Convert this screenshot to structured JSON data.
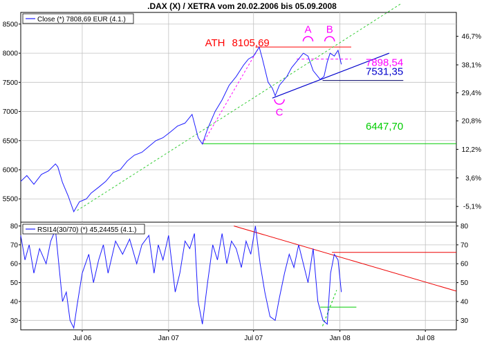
{
  "title": ".DAX (X) / XETRA vom 20.02.2006 bis 05.09.2008",
  "x_tick_labels": [
    {
      "label": "Jul 06",
      "date": "2006-07-01"
    },
    {
      "label": "Jan 07",
      "date": "2007-01-01"
    },
    {
      "label": "Jul 07",
      "date": "2007-07-01"
    },
    {
      "label": "Jan 08",
      "date": "2008-01-01"
    },
    {
      "label": "Jul 08",
      "date": "2008-07-01"
    }
  ],
  "colors": {
    "price": "#1a1aff",
    "rsi": "#1a1aff",
    "trend_blue": "#0000cc",
    "ath_red": "#ff0000",
    "support_green": "#00cc00",
    "magenta": "#ff00ff",
    "green_dashed": "#33cc33",
    "rsi_red": "#ee0000"
  },
  "chart_data": [
    {
      "type": "line",
      "name": "price",
      "legend": "Close (*) 7808,69 EUR (4.1.)",
      "xlim": [
        "2006-02-20",
        "2008-09-05"
      ],
      "ylim": [
        5100,
        8700
      ],
      "y_ticks": [
        5500,
        6000,
        6500,
        7000,
        7500,
        8000,
        8500
      ],
      "y_tick_labels": [
        "5500",
        "6000",
        "6500",
        "7000",
        "7500",
        "8000",
        "8500"
      ],
      "right_ticks": [
        {
          "label": "-5,1%",
          "value": 5370
        },
        {
          "label": "3,6%",
          "value": 5860
        },
        {
          "label": "12,2%",
          "value": 6350
        },
        {
          "label": "20,8%",
          "value": 6840
        },
        {
          "label": "29,4%",
          "value": 7320
        },
        {
          "label": "38,1%",
          "value": 7800
        },
        {
          "label": "46,7%",
          "value": 8290
        }
      ],
      "grid": true,
      "series": [
        {
          "x": [
            "2006-02-20",
            "2006-03-05",
            "2006-03-20",
            "2006-04-05",
            "2006-04-20",
            "2006-05-05",
            "2006-05-10",
            "2006-05-20",
            "2006-06-01",
            "2006-06-13",
            "2006-06-25",
            "2006-07-10",
            "2006-07-20",
            "2006-08-05",
            "2006-08-20",
            "2006-09-05",
            "2006-09-20",
            "2006-10-05",
            "2006-10-20",
            "2006-11-05",
            "2006-11-20",
            "2006-12-05",
            "2006-12-20",
            "2007-01-05",
            "2007-01-20",
            "2007-02-05",
            "2007-02-20",
            "2007-03-05",
            "2007-03-14",
            "2007-03-25",
            "2007-04-10",
            "2007-04-25",
            "2007-05-10",
            "2007-05-25",
            "2007-06-10",
            "2007-06-20",
            "2007-07-01",
            "2007-07-13",
            "2007-07-20",
            "2007-08-01",
            "2007-08-10",
            "2007-08-16",
            "2007-08-25",
            "2007-09-10",
            "2007-09-20",
            "2007-10-05",
            "2007-10-15",
            "2007-10-25",
            "2007-11-05",
            "2007-11-20",
            "2007-11-28",
            "2007-12-05",
            "2007-12-11",
            "2007-12-20",
            "2007-12-28",
            "2008-01-04"
          ],
          "y": [
            5800,
            5900,
            5750,
            5920,
            5980,
            6100,
            6050,
            5780,
            5550,
            5280,
            5450,
            5500,
            5600,
            5700,
            5800,
            5950,
            6000,
            6150,
            6250,
            6300,
            6400,
            6500,
            6550,
            6650,
            6750,
            6800,
            6950,
            6550,
            6440,
            6700,
            7000,
            7200,
            7450,
            7600,
            7800,
            7900,
            7950,
            8105,
            7900,
            7500,
            7400,
            7270,
            7450,
            7600,
            7750,
            7900,
            8000,
            7950,
            7700,
            7550,
            7600,
            7850,
            8000,
            7950,
            8050,
            7808
          ]
        }
      ],
      "annotations": [
        {
          "text": "ATH",
          "color": "#ff0000"
        },
        {
          "text": "8105,69",
          "color": "#ff0000"
        },
        {
          "text": "A",
          "color": "#ff00ff"
        },
        {
          "text": "B",
          "color": "#ff00ff"
        },
        {
          "text": "C",
          "color": "#ff00ff"
        },
        {
          "text": "7898,54",
          "color": "#ff00ff"
        },
        {
          "text": "7531,35",
          "color": "#0000cc"
        },
        {
          "text": "6447,70",
          "color": "#00cc00"
        }
      ],
      "levels": {
        "ath": 8105.69,
        "ab": 7898.54,
        "support_blue": 7531.35,
        "support_green": 6447.7
      },
      "lines": [
        {
          "kind": "ath-level",
          "from": [
            "2007-07-05",
            8105.69
          ],
          "to": [
            "2008-01-25",
            8105.69
          ]
        },
        {
          "kind": "ab-level-dashed",
          "from": [
            "2007-10-01",
            7898.54
          ],
          "to": [
            "2008-01-25",
            7898.54
          ]
        },
        {
          "kind": "blue-trend",
          "from": [
            "2007-08-10",
            7230
          ],
          "to": [
            "2008-04-15",
            8000
          ]
        },
        {
          "kind": "blue-level",
          "from": [
            "2007-11-25",
            7531.35
          ],
          "to": [
            "2008-05-15",
            7531.35
          ]
        },
        {
          "kind": "green-level",
          "from": [
            "2007-03-15",
            6447.7
          ],
          "to": [
            "2008-09-05",
            6447.7
          ]
        },
        {
          "kind": "green-dashed-trend",
          "from": [
            "2006-06-20",
            5300
          ],
          "to": [
            "2008-05-10",
            8850
          ]
        },
        {
          "kind": "magenta-dashed",
          "from": [
            "2007-03-14",
            6440
          ],
          "to": [
            "2007-07-13",
            8105
          ]
        }
      ]
    },
    {
      "type": "line",
      "name": "rsi",
      "legend": "RSI14(30/70) (*) 45,24455 (4.1.)",
      "xlim": [
        "2006-02-20",
        "2008-09-05"
      ],
      "ylim": [
        25,
        82
      ],
      "y_ticks": [
        30,
        40,
        50,
        60,
        70,
        80
      ],
      "grid": true,
      "series": [
        {
          "x": [
            "2006-02-20",
            "2006-03-01",
            "2006-03-10",
            "2006-03-20",
            "2006-04-01",
            "2006-04-15",
            "2006-04-25",
            "2006-05-05",
            "2006-05-12",
            "2006-05-20",
            "2006-05-28",
            "2006-06-05",
            "2006-06-13",
            "2006-06-20",
            "2006-07-01",
            "2006-07-15",
            "2006-07-25",
            "2006-08-05",
            "2006-08-15",
            "2006-08-25",
            "2006-09-10",
            "2006-09-25",
            "2006-10-10",
            "2006-10-25",
            "2006-11-05",
            "2006-11-20",
            "2006-12-01",
            "2006-12-10",
            "2006-12-20",
            "2007-01-01",
            "2007-01-15",
            "2007-01-25",
            "2007-02-05",
            "2007-02-15",
            "2007-02-25",
            "2007-03-05",
            "2007-03-14",
            "2007-03-25",
            "2007-04-05",
            "2007-04-15",
            "2007-04-25",
            "2007-05-05",
            "2007-05-15",
            "2007-05-25",
            "2007-06-05",
            "2007-06-15",
            "2007-06-25",
            "2007-07-05",
            "2007-07-15",
            "2007-07-25",
            "2007-08-05",
            "2007-08-16",
            "2007-08-25",
            "2007-09-05",
            "2007-09-15",
            "2007-09-25",
            "2007-10-05",
            "2007-10-15",
            "2007-10-25",
            "2007-11-05",
            "2007-11-15",
            "2007-11-26",
            "2007-12-05",
            "2007-12-12",
            "2007-12-20",
            "2007-12-28",
            "2008-01-04"
          ],
          "y": [
            75,
            62,
            70,
            55,
            68,
            60,
            72,
            78,
            60,
            40,
            45,
            30,
            26,
            38,
            55,
            65,
            50,
            62,
            70,
            55,
            72,
            65,
            73,
            60,
            70,
            75,
            55,
            70,
            62,
            75,
            45,
            55,
            72,
            68,
            76,
            40,
            28,
            50,
            70,
            62,
            76,
            60,
            72,
            68,
            58,
            72,
            65,
            80,
            60,
            45,
            32,
            30,
            42,
            55,
            65,
            58,
            70,
            60,
            50,
            68,
            40,
            30,
            28,
            55,
            65,
            62,
            45
          ]
        }
      ],
      "lines": [
        {
          "kind": "red-trend",
          "from": [
            "2007-05-20",
            80
          ],
          "to": [
            "2008-09-05",
            45.5
          ]
        },
        {
          "kind": "red-level",
          "from": [
            "2007-12-15",
            66
          ],
          "to": [
            "2008-09-05",
            66
          ]
        },
        {
          "kind": "green-level",
          "from": [
            "2007-11-20",
            37
          ],
          "to": [
            "2008-02-05",
            37
          ]
        },
        {
          "kind": "green-dashed",
          "from": [
            "2007-11-25",
            27
          ],
          "to": [
            "2007-12-25",
            46
          ]
        }
      ]
    }
  ]
}
